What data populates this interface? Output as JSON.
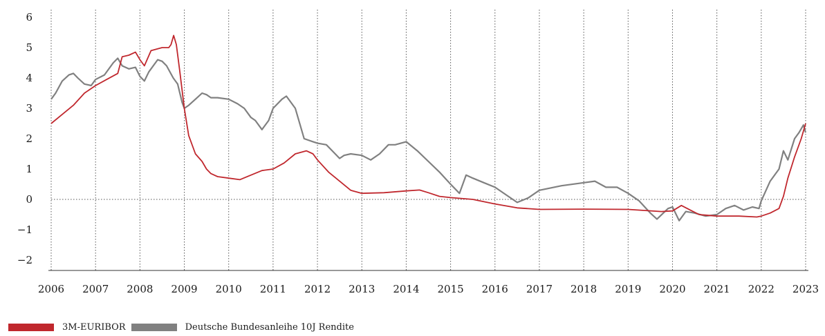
{
  "chart_data": {
    "type": "line",
    "title": "",
    "xlabel": "",
    "ylabel": "",
    "xlim": [
      2006,
      2023
    ],
    "ylim": [
      -2,
      6
    ],
    "x_ticks": [
      "2006",
      "2007",
      "2008",
      "2009",
      "2010",
      "2011",
      "2012",
      "2013",
      "2014",
      "2015",
      "2016",
      "2017",
      "2018",
      "2019",
      "2020",
      "2021",
      "2022",
      "2023"
    ],
    "y_ticks": [
      "6",
      "5",
      "4",
      "3",
      "2",
      "1",
      "0",
      "−1",
      "−2"
    ],
    "y_tick_values": [
      6,
      5,
      4,
      3,
      2,
      1,
      0,
      -1,
      -2
    ],
    "grid": "vertical dotted lines at each year, dotted zero line",
    "legend_position": "bottom-left",
    "colors": {
      "euribor": "#c0272d",
      "bund": "#808080",
      "grid": "#555555",
      "axis": "#333333"
    },
    "series": [
      {
        "name": "3M-EURIBOR",
        "color": "#c0272d",
        "points": [
          [
            2006.0,
            2.5
          ],
          [
            2006.25,
            2.8
          ],
          [
            2006.5,
            3.1
          ],
          [
            2006.75,
            3.5
          ],
          [
            2007.0,
            3.75
          ],
          [
            2007.25,
            3.95
          ],
          [
            2007.5,
            4.15
          ],
          [
            2007.6,
            4.7
          ],
          [
            2007.75,
            4.75
          ],
          [
            2007.9,
            4.85
          ],
          [
            2008.0,
            4.6
          ],
          [
            2008.1,
            4.4
          ],
          [
            2008.25,
            4.9
          ],
          [
            2008.5,
            5.0
          ],
          [
            2008.65,
            5.0
          ],
          [
            2008.7,
            5.1
          ],
          [
            2008.76,
            5.4
          ],
          [
            2008.82,
            5.1
          ],
          [
            2008.9,
            4.2
          ],
          [
            2009.0,
            3.0
          ],
          [
            2009.1,
            2.1
          ],
          [
            2009.25,
            1.5
          ],
          [
            2009.4,
            1.25
          ],
          [
            2009.5,
            1.0
          ],
          [
            2009.6,
            0.85
          ],
          [
            2009.75,
            0.75
          ],
          [
            2010.0,
            0.7
          ],
          [
            2010.25,
            0.65
          ],
          [
            2010.5,
            0.8
          ],
          [
            2010.75,
            0.95
          ],
          [
            2011.0,
            1.0
          ],
          [
            2011.25,
            1.2
          ],
          [
            2011.5,
            1.5
          ],
          [
            2011.75,
            1.6
          ],
          [
            2011.9,
            1.5
          ],
          [
            2012.0,
            1.3
          ],
          [
            2012.25,
            0.9
          ],
          [
            2012.5,
            0.6
          ],
          [
            2012.75,
            0.3
          ],
          [
            2013.0,
            0.2
          ],
          [
            2013.5,
            0.22
          ],
          [
            2014.0,
            0.28
          ],
          [
            2014.3,
            0.31
          ],
          [
            2014.5,
            0.22
          ],
          [
            2014.75,
            0.1
          ],
          [
            2015.0,
            0.06
          ],
          [
            2015.5,
            0.0
          ],
          [
            2016.0,
            -0.15
          ],
          [
            2016.5,
            -0.28
          ],
          [
            2017.0,
            -0.33
          ],
          [
            2018.0,
            -0.32
          ],
          [
            2019.0,
            -0.33
          ],
          [
            2019.75,
            -0.4
          ],
          [
            2020.0,
            -0.38
          ],
          [
            2020.2,
            -0.2
          ],
          [
            2020.4,
            -0.35
          ],
          [
            2020.6,
            -0.5
          ],
          [
            2021.0,
            -0.55
          ],
          [
            2021.5,
            -0.55
          ],
          [
            2021.9,
            -0.58
          ],
          [
            2022.0,
            -0.55
          ],
          [
            2022.2,
            -0.45
          ],
          [
            2022.4,
            -0.3
          ],
          [
            2022.5,
            0.1
          ],
          [
            2022.6,
            0.7
          ],
          [
            2022.75,
            1.4
          ],
          [
            2022.9,
            2.0
          ],
          [
            2023.0,
            2.5
          ]
        ]
      },
      {
        "name": "Deutsche Bundesanleihe 10J Rendite",
        "color": "#808080",
        "points": [
          [
            2006.0,
            3.3
          ],
          [
            2006.1,
            3.5
          ],
          [
            2006.25,
            3.9
          ],
          [
            2006.4,
            4.1
          ],
          [
            2006.5,
            4.15
          ],
          [
            2006.6,
            4.0
          ],
          [
            2006.75,
            3.8
          ],
          [
            2006.9,
            3.75
          ],
          [
            2007.0,
            3.95
          ],
          [
            2007.2,
            4.1
          ],
          [
            2007.4,
            4.5
          ],
          [
            2007.5,
            4.65
          ],
          [
            2007.6,
            4.4
          ],
          [
            2007.75,
            4.3
          ],
          [
            2007.9,
            4.35
          ],
          [
            2008.0,
            4.05
          ],
          [
            2008.1,
            3.9
          ],
          [
            2008.2,
            4.2
          ],
          [
            2008.4,
            4.6
          ],
          [
            2008.5,
            4.55
          ],
          [
            2008.6,
            4.4
          ],
          [
            2008.75,
            4.0
          ],
          [
            2008.85,
            3.8
          ],
          [
            2008.95,
            3.2
          ],
          [
            2009.0,
            3.0
          ],
          [
            2009.1,
            3.1
          ],
          [
            2009.25,
            3.3
          ],
          [
            2009.4,
            3.5
          ],
          [
            2009.5,
            3.45
          ],
          [
            2009.6,
            3.35
          ],
          [
            2009.75,
            3.35
          ],
          [
            2010.0,
            3.3
          ],
          [
            2010.2,
            3.15
          ],
          [
            2010.35,
            3.0
          ],
          [
            2010.5,
            2.7
          ],
          [
            2010.6,
            2.6
          ],
          [
            2010.75,
            2.3
          ],
          [
            2010.9,
            2.6
          ],
          [
            2011.0,
            3.0
          ],
          [
            2011.2,
            3.3
          ],
          [
            2011.3,
            3.4
          ],
          [
            2011.5,
            3.0
          ],
          [
            2011.6,
            2.5
          ],
          [
            2011.7,
            2.0
          ],
          [
            2011.9,
            1.9
          ],
          [
            2012.0,
            1.85
          ],
          [
            2012.2,
            1.8
          ],
          [
            2012.4,
            1.5
          ],
          [
            2012.5,
            1.35
          ],
          [
            2012.6,
            1.45
          ],
          [
            2012.75,
            1.5
          ],
          [
            2013.0,
            1.45
          ],
          [
            2013.2,
            1.3
          ],
          [
            2013.4,
            1.5
          ],
          [
            2013.6,
            1.8
          ],
          [
            2013.75,
            1.8
          ],
          [
            2014.0,
            1.9
          ],
          [
            2014.25,
            1.6
          ],
          [
            2014.5,
            1.25
          ],
          [
            2014.75,
            0.9
          ],
          [
            2015.0,
            0.5
          ],
          [
            2015.2,
            0.2
          ],
          [
            2015.35,
            0.8
          ],
          [
            2015.5,
            0.7
          ],
          [
            2015.75,
            0.55
          ],
          [
            2016.0,
            0.4
          ],
          [
            2016.25,
            0.15
          ],
          [
            2016.5,
            -0.1
          ],
          [
            2016.75,
            0.05
          ],
          [
            2017.0,
            0.3
          ],
          [
            2017.5,
            0.45
          ],
          [
            2018.0,
            0.55
          ],
          [
            2018.25,
            0.6
          ],
          [
            2018.5,
            0.4
          ],
          [
            2018.75,
            0.4
          ],
          [
            2019.0,
            0.2
          ],
          [
            2019.25,
            -0.05
          ],
          [
            2019.5,
            -0.45
          ],
          [
            2019.65,
            -0.65
          ],
          [
            2019.9,
            -0.3
          ],
          [
            2020.0,
            -0.25
          ],
          [
            2020.15,
            -0.7
          ],
          [
            2020.3,
            -0.4
          ],
          [
            2020.5,
            -0.45
          ],
          [
            2020.75,
            -0.55
          ],
          [
            2021.0,
            -0.5
          ],
          [
            2021.2,
            -0.3
          ],
          [
            2021.4,
            -0.2
          ],
          [
            2021.6,
            -0.35
          ],
          [
            2021.8,
            -0.25
          ],
          [
            2021.95,
            -0.3
          ],
          [
            2022.0,
            -0.05
          ],
          [
            2022.2,
            0.6
          ],
          [
            2022.4,
            1.0
          ],
          [
            2022.5,
            1.6
          ],
          [
            2022.6,
            1.3
          ],
          [
            2022.75,
            2.0
          ],
          [
            2022.85,
            2.2
          ],
          [
            2022.95,
            2.45
          ],
          [
            2023.0,
            2.2
          ]
        ]
      }
    ]
  }
}
